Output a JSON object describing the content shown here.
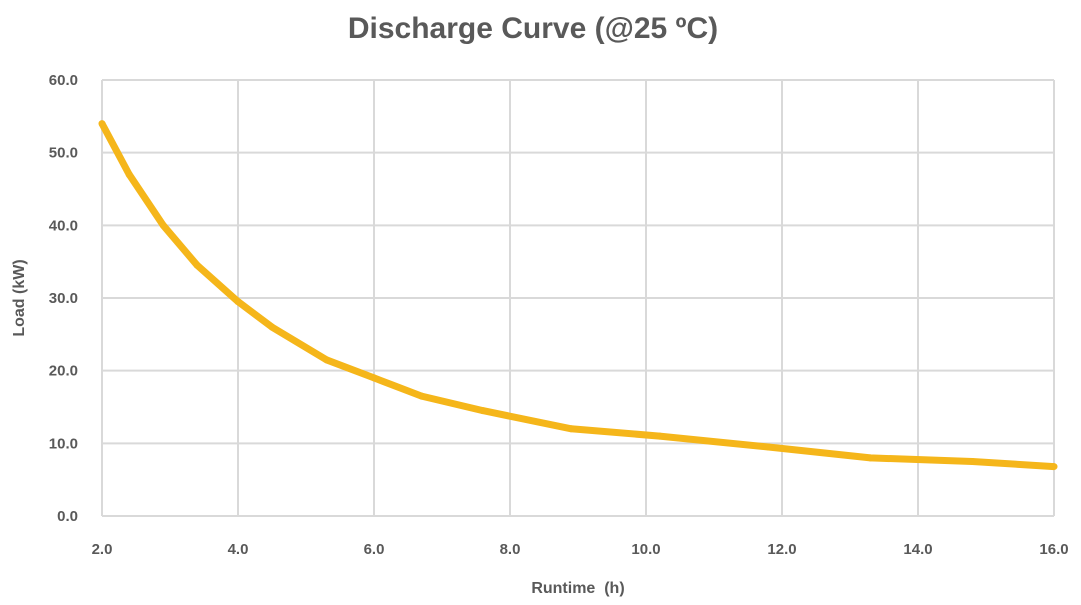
{
  "chart_data": {
    "type": "line",
    "title": "Discharge Curve (@25 ºC)",
    "xlabel": "Runtime  (h)",
    "ylabel": "Load (kW)",
    "xlim": [
      2.0,
      16.0
    ],
    "ylim": [
      0.0,
      60.0
    ],
    "x_ticks": [
      "2.0",
      "4.0",
      "6.0",
      "8.0",
      "10.0",
      "12.0",
      "14.0",
      "16.0"
    ],
    "y_ticks": [
      "0.0",
      "10.0",
      "20.0",
      "30.0",
      "40.0",
      "50.0",
      "60.0"
    ],
    "grid": true,
    "legend": "none",
    "series": [
      {
        "color": "#f5b61a",
        "x": [
          2.0,
          2.4,
          2.9,
          3.4,
          4.0,
          4.5,
          5.3,
          6.0,
          6.7,
          7.6,
          8.9,
          10.2,
          11.8,
          13.3,
          14.8,
          16.0
        ],
        "y": [
          54.0,
          47.0,
          40.0,
          34.5,
          29.5,
          26.0,
          21.5,
          19.0,
          16.5,
          14.5,
          12.0,
          11.0,
          9.5,
          8.0,
          7.5,
          6.8
        ]
      }
    ]
  }
}
